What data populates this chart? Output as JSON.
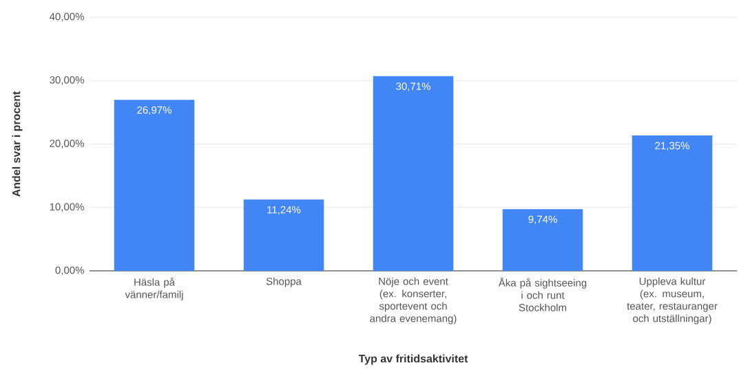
{
  "chart_data": {
    "type": "bar",
    "xlabel": "Typ av fritidsaktivitet",
    "ylabel": "Andel svar i procent",
    "categories": [
      "Häsla på vänner/familj",
      "Shoppa",
      "Nöje och event (ex. konserter, sportevent och andra evenemang)",
      "Åka på sightseeing i och runt Stockholm",
      "Uppleva kultur (ex. museum, teater, restauranger och utställningar)"
    ],
    "values": [
      26.97,
      11.24,
      30.71,
      9.74,
      21.35
    ],
    "value_labels": [
      "26,97%",
      "11,24%",
      "30,71%",
      "9,74%",
      "21,35%"
    ],
    "color": "#4285f4",
    "ylim": [
      0,
      40
    ],
    "yticks": [
      {
        "value": 0,
        "label": "0,00%"
      },
      {
        "value": 10,
        "label": "10,00%"
      },
      {
        "value": 20,
        "label": "20,00%"
      },
      {
        "value": 30,
        "label": "30,00%"
      },
      {
        "value": 40,
        "label": "40,00%"
      }
    ],
    "grid": "y"
  }
}
